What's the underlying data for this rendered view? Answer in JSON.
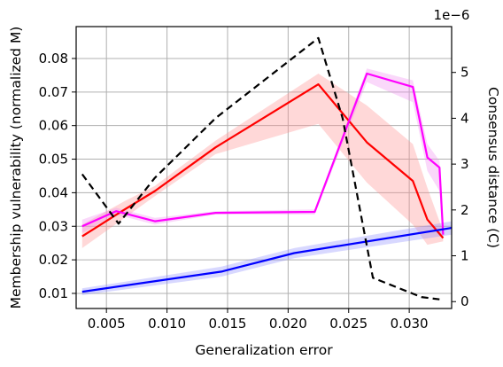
{
  "chart_data": {
    "type": "line",
    "xlabel": "Generalization error",
    "ylabel_left": "Membership vulnerability (normalized M)",
    "ylabel_right": "Consensus distance (C)",
    "right_axis_multiplier": "1e−6",
    "xlim": [
      0.0025,
      0.0335
    ],
    "ylim_left": [
      0.0055,
      0.0895
    ],
    "ylim_right": [
      -0.15,
      6.0
    ],
    "grid": true,
    "x_ticks": [
      {
        "value": 0.005,
        "label": "0.005"
      },
      {
        "value": 0.01,
        "label": "0.010"
      },
      {
        "value": 0.015,
        "label": "0.015"
      },
      {
        "value": 0.02,
        "label": "0.020"
      },
      {
        "value": 0.025,
        "label": "0.025"
      },
      {
        "value": 0.03,
        "label": "0.030"
      }
    ],
    "y_left_ticks": [
      {
        "value": 0.01,
        "label": "0.01"
      },
      {
        "value": 0.02,
        "label": "0.02"
      },
      {
        "value": 0.03,
        "label": "0.03"
      },
      {
        "value": 0.04,
        "label": "0.04"
      },
      {
        "value": 0.05,
        "label": "0.05"
      },
      {
        "value": 0.06,
        "label": "0.06"
      },
      {
        "value": 0.07,
        "label": "0.07"
      },
      {
        "value": 0.08,
        "label": "0.08"
      }
    ],
    "y_right_ticks": [
      {
        "value": 0,
        "label": "0"
      },
      {
        "value": 1,
        "label": "1"
      },
      {
        "value": 2,
        "label": "2"
      },
      {
        "value": 3,
        "label": "3"
      },
      {
        "value": 4,
        "label": "4"
      },
      {
        "value": 5,
        "label": "5"
      }
    ],
    "series": [
      {
        "axis": "left",
        "color": "#ff0000",
        "dash": false,
        "band_color": "#ff9090",
        "x": [
          0.003,
          0.0065,
          0.009,
          0.014,
          0.0225,
          0.0265,
          0.0303,
          0.0315,
          0.0328
        ],
        "y": [
          0.027,
          0.035,
          0.0405,
          0.0535,
          0.0723,
          0.055,
          0.0435,
          0.032,
          0.0265
        ],
        "lower": [
          0.0235,
          0.0325,
          0.039,
          0.0515,
          0.0605,
          0.043,
          0.0305,
          0.0245,
          0.0255
        ],
        "upper": [
          0.0305,
          0.0375,
          0.042,
          0.0555,
          0.0755,
          0.066,
          0.0545,
          0.0415,
          0.0285
        ]
      },
      {
        "axis": "left",
        "color": "#ff00ff",
        "dash": false,
        "band_color": "#f090f0",
        "x": [
          0.003,
          0.0058,
          0.009,
          0.014,
          0.0222,
          0.0265,
          0.0303,
          0.0315,
          0.0325,
          0.0328
        ],
        "y": [
          0.03,
          0.0345,
          0.0315,
          0.034,
          0.0343,
          0.0755,
          0.0715,
          0.0505,
          0.0475,
          0.0275
        ],
        "lower": [
          0.028,
          0.0335,
          0.0305,
          0.0335,
          0.0335,
          0.073,
          0.067,
          0.0465,
          0.0405,
          0.0265
        ],
        "upper": [
          0.032,
          0.0355,
          0.0325,
          0.0345,
          0.035,
          0.077,
          0.0735,
          0.0545,
          0.0495,
          0.0285
        ]
      },
      {
        "axis": "left",
        "color": "#0000ff",
        "dash": false,
        "band_color": "#9090ff",
        "x": [
          0.003,
          0.0145,
          0.0205,
          0.0335
        ],
        "y": [
          0.0105,
          0.0165,
          0.022,
          0.0295
        ],
        "lower": [
          0.0095,
          0.015,
          0.0205,
          0.0275
        ],
        "upper": [
          0.0115,
          0.018,
          0.0235,
          0.0315
        ]
      },
      {
        "axis": "right",
        "color": "#000000",
        "dash": true,
        "x": [
          0.003,
          0.006,
          0.009,
          0.014,
          0.0225,
          0.0245,
          0.027,
          0.031,
          0.0325
        ],
        "y": [
          2.78,
          1.7,
          2.7,
          4.0,
          5.75,
          4.0,
          0.52,
          0.1,
          0.05
        ]
      }
    ]
  }
}
